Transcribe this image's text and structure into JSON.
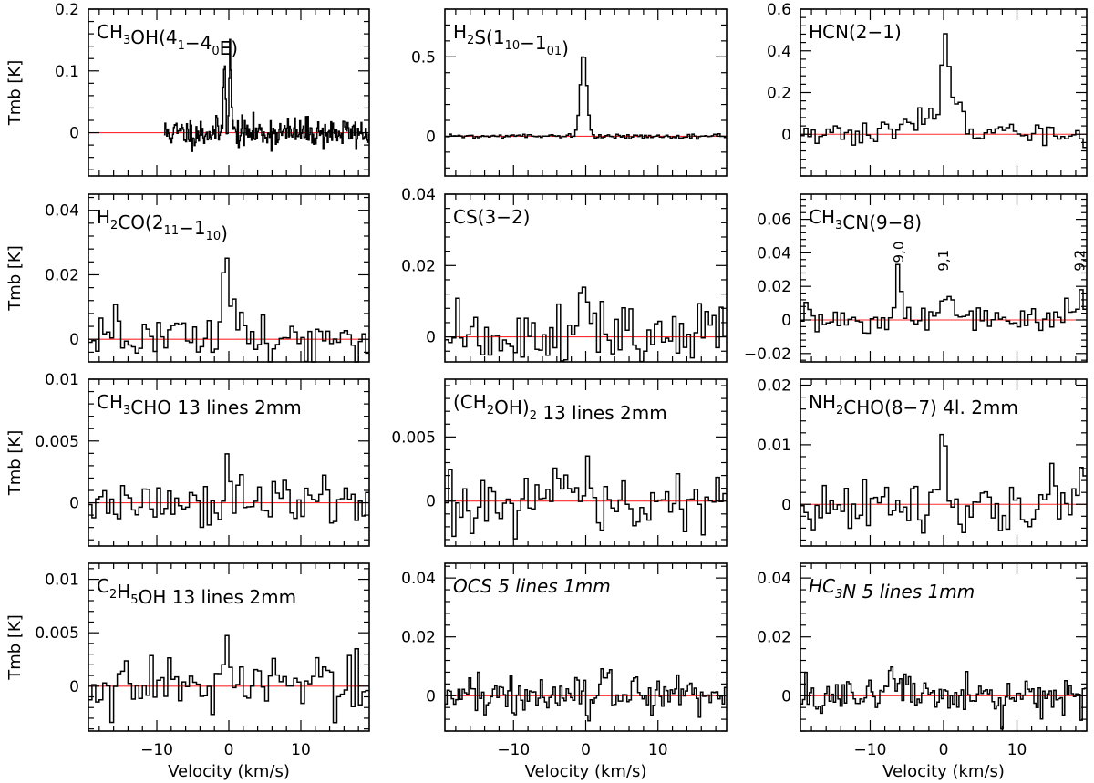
{
  "figure": {
    "xlabel": "Velocity (km/s)",
    "ylabel": "Tmb [K]"
  },
  "chart_data": [
    {
      "type": "line",
      "title_id": "ch3oh",
      "title_segments": [
        [
          "CH"
        ],
        [
          "3",
          "sub"
        ],
        [
          "OH(4"
        ],
        [
          "1",
          "sub"
        ],
        [
          "−4"
        ],
        [
          "0",
          "sub"
        ],
        [
          "E)"
        ]
      ],
      "ylim": [
        -0.07,
        0.2
      ],
      "yticks": [
        0,
        0.1,
        0.2
      ],
      "yticklabels": [
        "0",
        "0.1",
        "0.2"
      ],
      "xlim": [
        -19.5,
        19.5
      ],
      "xtick_major": [
        -10,
        0,
        10
      ],
      "xticklabels": [
        "−10",
        "0",
        "10"
      ],
      "noise": 0.012,
      "seed": 11,
      "xspan": [
        -9,
        19.5
      ],
      "dx": 0.12,
      "peaks": [
        {
          "x": -0.6,
          "y": 0.13,
          "w": 0.15
        },
        {
          "x": 0.2,
          "y": 0.135,
          "w": 0.15
        }
      ],
      "ylabel_shown": true,
      "xlabel_shown": false,
      "italic": false
    },
    {
      "type": "line",
      "title_id": "h2s",
      "title_segments": [
        [
          "H"
        ],
        [
          "2",
          "sub"
        ],
        [
          "S(1"
        ],
        [
          "10",
          "sub"
        ],
        [
          "−1"
        ],
        [
          "01",
          "sub"
        ],
        [
          ")"
        ]
      ],
      "ylim": [
        -0.25,
        0.8
      ],
      "yticks": [
        0,
        0.5
      ],
      "yticklabels": [
        "0",
        "0.5"
      ],
      "xlim": [
        -19.5,
        19.5
      ],
      "xtick_major": [
        -10,
        0,
        10
      ],
      "xticklabels": [
        "−10",
        "0",
        "10"
      ],
      "noise": 0.006,
      "seed": 22,
      "xspan": [
        -19.5,
        19.5
      ],
      "dx": 0.3,
      "peaks": [
        {
          "x": -0.3,
          "y": 0.53,
          "w": 0.45
        }
      ],
      "ylabel_shown": false,
      "xlabel_shown": false,
      "italic": false
    },
    {
      "type": "line",
      "title_id": "hcn",
      "title_segments": [
        [
          "HCN(2−1)"
        ]
      ],
      "ylim": [
        -0.2,
        0.6
      ],
      "yticks": [
        0,
        0.2,
        0.4,
        0.6
      ],
      "yticklabels": [
        "0",
        "0.2",
        "0.4",
        "0.6"
      ],
      "xlim": [
        -19.5,
        19.5
      ],
      "xtick_major": [
        -10,
        0,
        10
      ],
      "xticklabels": [
        "−10",
        "0",
        "10"
      ],
      "noise": 0.028,
      "seed": 33,
      "xspan": [
        -19.5,
        19.5
      ],
      "dx": 0.5,
      "peaks": [
        {
          "x": 0.1,
          "y": 0.42,
          "w": 0.45
        },
        {
          "x": 1.6,
          "y": 0.14,
          "w": 0.9
        },
        {
          "x": -2.5,
          "y": 0.08,
          "w": 2.2
        }
      ],
      "ylabel_shown": false,
      "xlabel_shown": false,
      "italic": false
    },
    {
      "type": "line",
      "title_id": "h2co",
      "title_segments": [
        [
          "H"
        ],
        [
          "2",
          "sub"
        ],
        [
          "CO(2"
        ],
        [
          "11",
          "sub"
        ],
        [
          "−1"
        ],
        [
          "10",
          "sub"
        ],
        [
          ")"
        ]
      ],
      "ylim": [
        -0.007,
        0.045
      ],
      "yticks": [
        0,
        0.02,
        0.04
      ],
      "yticklabels": [
        "0",
        "0.02",
        "0.04"
      ],
      "xlim": [
        -19.5,
        19.5
      ],
      "xtick_major": [
        -10,
        0,
        10
      ],
      "xticklabels": [
        "−10",
        "0",
        "10"
      ],
      "noise": 0.0045,
      "seed": 44,
      "xspan": [
        -19.5,
        19.5
      ],
      "dx": 0.5,
      "peaks": [
        {
          "x": -0.3,
          "y": 0.02,
          "w": 0.7
        }
      ],
      "ylabel_shown": true,
      "xlabel_shown": false,
      "italic": false
    },
    {
      "type": "line",
      "title_id": "cs",
      "title_segments": [
        [
          "CS(3−2)"
        ]
      ],
      "ylim": [
        -0.007,
        0.04
      ],
      "yticks": [
        0,
        0.02,
        0.04
      ],
      "yticklabels": [
        "0",
        "0.02",
        "0.04"
      ],
      "xlim": [
        -19.5,
        19.5
      ],
      "xtick_major": [
        -10,
        0,
        10
      ],
      "xticklabels": [
        "−10",
        "0",
        "10"
      ],
      "noise": 0.0045,
      "seed": 55,
      "xspan": [
        -19.5,
        19.5
      ],
      "dx": 0.5,
      "peaks": [
        {
          "x": 0.0,
          "y": 0.021,
          "w": 0.35
        }
      ],
      "ylabel_shown": false,
      "xlabel_shown": false,
      "italic": false
    },
    {
      "type": "line",
      "title_id": "ch3cn",
      "title_segments": [
        [
          "CH"
        ],
        [
          "3",
          "sub"
        ],
        [
          "CN(9−8)"
        ]
      ],
      "ylim": [
        -0.025,
        0.075
      ],
      "yticks": [
        -0.02,
        0,
        0.02,
        0.04,
        0.06
      ],
      "yticklabels": [
        "−0.02",
        "0",
        "0.02",
        "0.04",
        "0.06"
      ],
      "xlim": [
        -19.5,
        19.5
      ],
      "xtick_major": [
        -10,
        0,
        10
      ],
      "xticklabels": [
        "−10",
        "0",
        "10"
      ],
      "noise": 0.0045,
      "seed": 66,
      "xspan": [
        -19.5,
        19.5
      ],
      "dx": 0.5,
      "peaks": [
        {
          "x": -6.1,
          "y": 0.028,
          "w": 0.35
        },
        {
          "x": 0.4,
          "y": 0.018,
          "w": 0.7
        },
        {
          "x": 18.6,
          "y": 0.02,
          "w": 0.35
        }
      ],
      "annotations": [
        {
          "x": -6.1,
          "y": 0.034,
          "text": "9,0"
        },
        {
          "x": 0.0,
          "y": 0.029,
          "text": "9,1"
        },
        {
          "x": 18.6,
          "y": 0.029,
          "text": "9,2"
        }
      ],
      "ylabel_shown": false,
      "xlabel_shown": false,
      "italic": false
    },
    {
      "type": "line",
      "title_id": "ch3cho",
      "title_segments": [
        [
          "CH"
        ],
        [
          "3",
          "sub"
        ],
        [
          "CHO 13 lines 2mm"
        ]
      ],
      "ylim": [
        -0.0035,
        0.01
      ],
      "yticks": [
        0,
        0.005,
        0.01
      ],
      "yticklabels": [
        "0",
        "0.005",
        "0.01"
      ],
      "xlim": [
        -19.5,
        19.5
      ],
      "xtick_major": [
        -10,
        0,
        10
      ],
      "xticklabels": [
        "−10",
        "0",
        "10"
      ],
      "noise": 0.0011,
      "seed": 77,
      "xspan": [
        -19.5,
        19.5
      ],
      "dx": 0.5,
      "peaks": [
        {
          "x": -0.1,
          "y": 0.0038,
          "w": 0.35
        }
      ],
      "ylabel_shown": true,
      "xlabel_shown": false,
      "italic": false
    },
    {
      "type": "line",
      "title_id": "ch2oh2",
      "title_segments": [
        [
          "(CH"
        ],
        [
          "2",
          "sub"
        ],
        [
          "OH)"
        ],
        [
          "2",
          "sub"
        ],
        [
          " 13 lines 2mm"
        ]
      ],
      "ylim": [
        -0.0035,
        0.0095
      ],
      "yticks": [
        0,
        0.005
      ],
      "yticklabels": [
        "0",
        "0.005"
      ],
      "xlim": [
        -19.5,
        19.5
      ],
      "xtick_major": [
        -10,
        0,
        10
      ],
      "xticklabels": [
        "−10",
        "0",
        "10"
      ],
      "noise": 0.0012,
      "seed": 88,
      "xspan": [
        -19.5,
        19.5
      ],
      "dx": 0.5,
      "peaks": [
        {
          "x": 0.3,
          "y": 0.0033,
          "w": 0.35
        }
      ],
      "ylabel_shown": false,
      "xlabel_shown": false,
      "italic": false
    },
    {
      "type": "line",
      "title_id": "nh2cho",
      "title_segments": [
        [
          "NH"
        ],
        [
          "2",
          "sub"
        ],
        [
          "CHO(8−7) 4l. 2mm"
        ]
      ],
      "ylim": [
        -0.007,
        0.021
      ],
      "yticks": [
        0,
        0.01,
        0.02
      ],
      "yticklabels": [
        "0",
        "0.01",
        "0.02"
      ],
      "xlim": [
        -19.5,
        19.5
      ],
      "xtick_major": [
        -10,
        0,
        10
      ],
      "xticklabels": [
        "−10",
        "0",
        "10"
      ],
      "noise": 0.0028,
      "seed": 99,
      "xspan": [
        -19.5,
        19.5
      ],
      "dx": 0.5,
      "peaks": [
        {
          "x": 0.2,
          "y": 0.008,
          "w": 0.35
        }
      ],
      "ylabel_shown": false,
      "xlabel_shown": false,
      "italic": false
    },
    {
      "type": "line",
      "title_id": "c2h5oh",
      "title_segments": [
        [
          "C"
        ],
        [
          "2",
          "sub"
        ],
        [
          "H"
        ],
        [
          "5",
          "sub"
        ],
        [
          "OH 13 lines 2mm"
        ]
      ],
      "ylim": [
        -0.0042,
        0.0115
      ],
      "yticks": [
        0,
        0.005,
        0.01
      ],
      "yticklabels": [
        "0",
        "0.005",
        "0.01"
      ],
      "xlim": [
        -19.5,
        19.5
      ],
      "xtick_major": [
        -10,
        0,
        10
      ],
      "xticklabels": [
        "−10",
        "0",
        "10"
      ],
      "noise": 0.0014,
      "seed": 111,
      "xspan": [
        -19.5,
        19.5
      ],
      "dx": 0.5,
      "peaks": [
        {
          "x": -0.3,
          "y": 0.0045,
          "w": 0.35
        }
      ],
      "ylabel_shown": true,
      "xlabel_shown": true,
      "italic": false
    },
    {
      "type": "line",
      "title_id": "ocs",
      "title_segments": [
        [
          "OCS 5 lines 1mm"
        ]
      ],
      "ylim": [
        -0.012,
        0.045
      ],
      "yticks": [
        0,
        0.02,
        0.04
      ],
      "yticklabels": [
        "0",
        "0.02",
        "0.04"
      ],
      "xlim": [
        -19.5,
        19.5
      ],
      "xtick_major": [
        -10,
        0,
        10
      ],
      "xticklabels": [
        "−10",
        "0",
        "10"
      ],
      "noise": 0.0032,
      "seed": 122,
      "xspan": [
        -19.5,
        19.5
      ],
      "dx": 0.3,
      "peaks": [
        {
          "x": 2.8,
          "y": 0.007,
          "w": 0.6
        }
      ],
      "ylabel_shown": false,
      "xlabel_shown": true,
      "italic": true
    },
    {
      "type": "line",
      "title_id": "hc3n",
      "title_segments": [
        [
          "HC"
        ],
        [
          "3",
          "sub"
        ],
        [
          "N 5 lines 1mm"
        ]
      ],
      "ylim": [
        -0.012,
        0.045
      ],
      "yticks": [
        0,
        0.02,
        0.04
      ],
      "yticklabels": [
        "0",
        "0.02",
        "0.04"
      ],
      "xlim": [
        -19.5,
        19.5
      ],
      "xtick_major": [
        -10,
        0,
        10
      ],
      "xticklabels": [
        "−10",
        "0",
        "10"
      ],
      "noise": 0.0032,
      "seed": 133,
      "xspan": [
        -19.5,
        19.5
      ],
      "dx": 0.3,
      "peaks": [
        {
          "x": -6.2,
          "y": 0.006,
          "w": 1.0
        }
      ],
      "ylabel_shown": false,
      "xlabel_shown": true,
      "italic": true
    }
  ]
}
